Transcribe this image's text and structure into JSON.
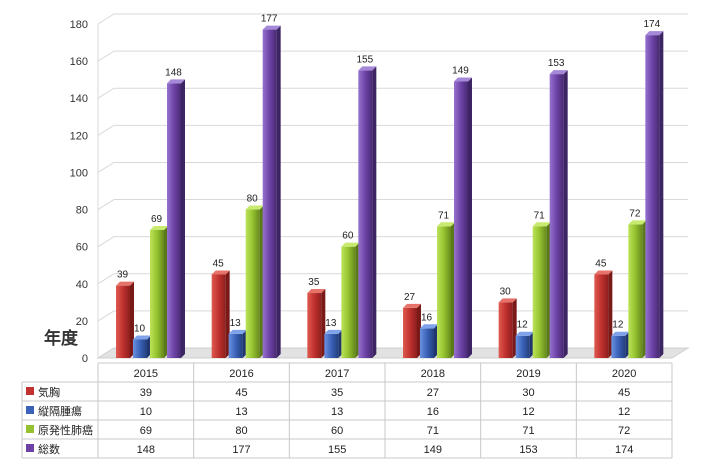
{
  "chart_data": {
    "type": "bar",
    "title": "",
    "xlabel": "",
    "ylabel": "年度",
    "ylim": [
      0,
      180
    ],
    "yticks": [
      0,
      20,
      40,
      60,
      80,
      100,
      120,
      140,
      160,
      180
    ],
    "grid": true,
    "legend": "data-table",
    "categories": [
      "2015",
      "2016",
      "2017",
      "2018",
      "2019",
      "2020"
    ],
    "series": [
      {
        "name": "気胸",
        "color": "#c0312f",
        "values": [
          39,
          45,
          35,
          27,
          30,
          45
        ]
      },
      {
        "name": "縦隔腫瘍",
        "color": "#3a62b8",
        "values": [
          10,
          13,
          13,
          16,
          12,
          12
        ]
      },
      {
        "name": "原発性肺癌",
        "color": "#94c22f",
        "values": [
          69,
          80,
          60,
          71,
          71,
          72
        ]
      },
      {
        "name": "総数",
        "color": "#6d42a6",
        "values": [
          148,
          177,
          155,
          149,
          153,
          174
        ]
      }
    ]
  }
}
